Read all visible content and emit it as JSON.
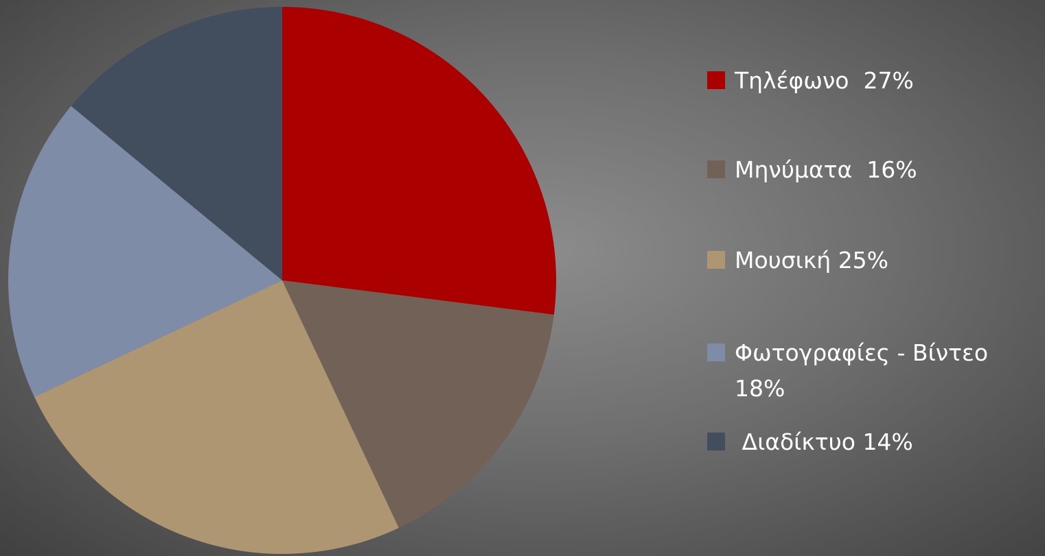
{
  "chart_data": {
    "type": "pie",
    "categories": [
      "Τηλέφωνο  27%",
      "Μηνύματα  16%",
      "Μουσική 25%",
      "Φωτογραφίες - Βίντεο 18%",
      " Διαδίκτυο 14%"
    ],
    "values": [
      27,
      16,
      25,
      18,
      14
    ],
    "colors": [
      "#aa0000",
      "#726157",
      "#ad9671",
      "#7f8ca8",
      "#424e5e"
    ],
    "legend": "right"
  }
}
